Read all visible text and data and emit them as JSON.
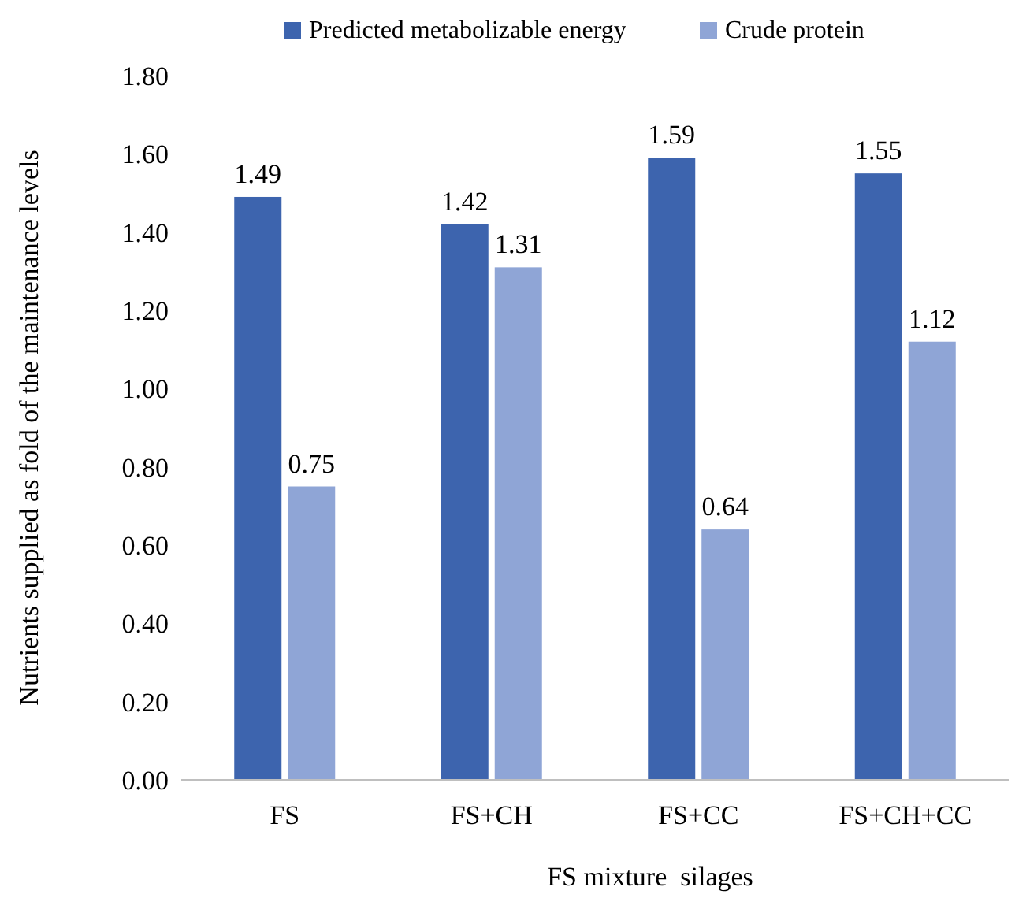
{
  "chart_data": {
    "type": "bar",
    "xlabel": "FS mixture  silages",
    "ylabel": "Nutrients supplied as fold of the maintenance levels",
    "categories": [
      "FS",
      "FS+CH",
      "FS+CC",
      "FS+CH+CC"
    ],
    "series": [
      {
        "name": "Predicted metabolizable energy",
        "color": "#3d64ae",
        "values": [
          1.49,
          1.42,
          1.59,
          1.55
        ]
      },
      {
        "name": "Crude protein",
        "color": "#8fa5d6",
        "values": [
          0.75,
          1.31,
          0.64,
          1.12
        ]
      }
    ],
    "ylim": [
      0,
      1.8
    ],
    "yticks": [
      {
        "value": 0,
        "label": "0.00"
      },
      {
        "value": 0.2,
        "label": "0.20"
      },
      {
        "value": 0.4,
        "label": "0.40"
      },
      {
        "value": 0.6,
        "label": "0.60"
      },
      {
        "value": 0.8,
        "label": "0.80"
      },
      {
        "value": 1,
        "label": "1.00"
      },
      {
        "value": 1.2,
        "label": "1.20"
      },
      {
        "value": 1.4,
        "label": "1.40"
      },
      {
        "value": 1.6,
        "label": "1.60"
      },
      {
        "value": 1.8,
        "label": "1.80"
      }
    ],
    "data_labels": true,
    "legend": "top",
    "grid": false
  }
}
